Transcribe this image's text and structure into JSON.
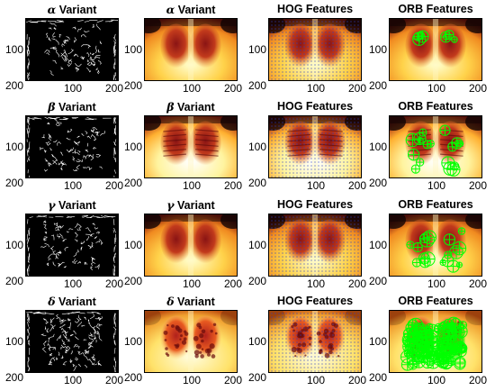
{
  "rows": [
    {
      "variant_symbol": "α",
      "variant_suffix": " Variant",
      "panels": [
        {
          "kind": "edge",
          "title_symbol": "α",
          "title_text": " Variant"
        },
        {
          "kind": "heat",
          "title_symbol": "α",
          "title_text": " Variant"
        },
        {
          "kind": "hog",
          "title_symbol": "",
          "title_text": "HOG Features"
        },
        {
          "kind": "orb",
          "title_symbol": "",
          "title_text": "ORB Features",
          "orb_density": "low"
        }
      ]
    },
    {
      "variant_symbol": "β",
      "variant_suffix": " Variant",
      "panels": [
        {
          "kind": "edge",
          "title_symbol": "β",
          "title_text": " Variant"
        },
        {
          "kind": "heat",
          "title_symbol": "β",
          "title_text": " Variant"
        },
        {
          "kind": "hog",
          "title_symbol": "",
          "title_text": "HOG Features"
        },
        {
          "kind": "orb",
          "title_symbol": "",
          "title_text": "ORB Features",
          "orb_density": "medium"
        }
      ]
    },
    {
      "variant_symbol": "γ",
      "variant_suffix": " Variant",
      "panels": [
        {
          "kind": "edge",
          "title_symbol": "γ",
          "title_text": " Variant"
        },
        {
          "kind": "heat",
          "title_symbol": "γ",
          "title_text": " Variant"
        },
        {
          "kind": "hog",
          "title_symbol": "",
          "title_text": "HOG Features"
        },
        {
          "kind": "orb",
          "title_symbol": "",
          "title_text": "ORB Features",
          "orb_density": "medium"
        }
      ]
    },
    {
      "variant_symbol": "δ",
      "variant_suffix": " Variant",
      "panels": [
        {
          "kind": "edge",
          "title_symbol": "δ",
          "title_text": " Variant"
        },
        {
          "kind": "heat",
          "title_symbol": "δ",
          "title_text": " Variant"
        },
        {
          "kind": "hog",
          "title_symbol": "",
          "title_text": "HOG Features"
        },
        {
          "kind": "orb",
          "title_symbol": "",
          "title_text": "ORB Features",
          "orb_density": "high"
        }
      ]
    }
  ],
  "y_ticks": [
    "100",
    "200"
  ],
  "x_ticks": [
    "100",
    "200"
  ],
  "colors": {
    "feature_green": "#00ff00",
    "hog_arrow": "#3040c0",
    "edge_bg": "#000000",
    "edge_line": "#ffffff"
  }
}
